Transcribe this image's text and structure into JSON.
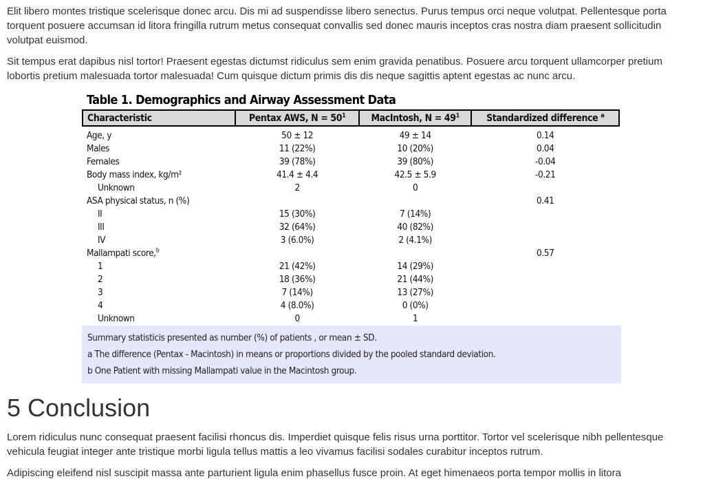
{
  "paragraphs_top": [
    "Elit libero montes tristique scelerisque donec arcu. Dis mi ad suspendisse libero senectus. Purus tempus orci neque volutpat. Pellentesque porta torquent posuere accumsan id litora fringilla rutrum metus consequat convallis sed donec mauris inceptos cras nostra diam praesent sollicitudin volutpat euismod.",
    "Sit tempus erat dapibus nisl tortor! Praesent egestas dictumst ridiculus sem enim gravida penatibus. Posuere arcu torquent ullamcorper pretium lobortis pretium malesuada tortor malesuada! Cum quisque dictum primis dis dis neque sagittis aptent egestas ac nunc arcu."
  ],
  "table": {
    "title": "Table 1. Demographics and Airway Assessment Data",
    "headers": {
      "characteristic": "Characteristic",
      "pentax": "Pentax AWS, N = 50",
      "pentax_sup": "1",
      "macintosh": "MacIntosh, N = 49",
      "macintosh_sup": "1",
      "std_diff": "Standardized difference",
      "std_diff_sup": "a"
    },
    "rows": [
      {
        "label": "Age, y",
        "pentax": "50 ± 12",
        "macintosh": "49 ± 14",
        "diff": "0.14"
      },
      {
        "label": "Males",
        "pentax": "11 (22%)",
        "macintosh": "10 (20%)",
        "diff": "0.04"
      },
      {
        "label": "Females",
        "pentax": "39 (78%)",
        "macintosh": "39 (80%)",
        "diff": "-0.04"
      },
      {
        "label": "Body mass index, kg/m²",
        "pentax": "41.4 ± 4.4",
        "macintosh": "42.5 ± 5.9",
        "diff": "-0.21"
      },
      {
        "label": "Unknown",
        "pentax": "2",
        "macintosh": "0",
        "diff": ""
      },
      {
        "label": "ASA physical status, n (%)",
        "pentax": "",
        "macintosh": "",
        "diff": "0.41"
      },
      {
        "label": "II",
        "pentax": "15 (30%)",
        "macintosh": "7 (14%)",
        "diff": ""
      },
      {
        "label": "III",
        "pentax": "32 (64%)",
        "macintosh": "40 (82%)",
        "diff": ""
      },
      {
        "label": "IV",
        "pentax": "3 (6.0%)",
        "macintosh": "2 (4.1%)",
        "diff": ""
      },
      {
        "label": "Mallampati score,",
        "label_sup": "b",
        "pentax": "",
        "macintosh": "",
        "diff": "0.57"
      },
      {
        "label": "1",
        "pentax": "21 (42%)",
        "macintosh": "14 (29%)",
        "diff": ""
      },
      {
        "label": "2",
        "pentax": "18 (36%)",
        "macintosh": "21 (44%)",
        "diff": ""
      },
      {
        "label": "3",
        "pentax": "7 (14%)",
        "macintosh": "13 (27%)",
        "diff": ""
      },
      {
        "label": "4",
        "pentax": "4 (8.0%)",
        "macintosh": "0 (0%)",
        "diff": ""
      },
      {
        "label": "Unknown",
        "pentax": "0",
        "macintosh": "1",
        "diff": ""
      }
    ],
    "notes": [
      "Summary statisticis presented as number (%) of patients , or mean ± SD.",
      "a The difference (Pentax - Macintosh) in means or proportions divided by the pooled standard deviation.",
      "b One Patient with missing Mallampati value in the Macintosh group."
    ]
  },
  "section_heading": "5 Conclusion",
  "paragraphs_bottom": [
    "Lorem ridiculus nunc consequat praesent facilisi rhoncus dis. Imperdiet quisque felis risus urna porttitor. Tortor vel scelerisque nibh pellentesque vehicula feugiat integer ante tristique morbi ligula tellus mattis a leo vivamus facilisi sodales curabitur inceptos rutrum.",
    "Adipiscing eleifend nisl suscipit massa ante parturient ligula enim phasellus fusce proin. At eget himenaeos porta tempor mollis in litora"
  ]
}
